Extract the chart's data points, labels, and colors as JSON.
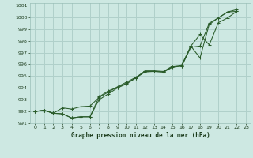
{
  "title": "Graphe pression niveau de la mer (hPa)",
  "background_color": "#cde8e2",
  "grid_color": "#b0d0ca",
  "line_color": "#2a5c2a",
  "xlim": [
    -0.5,
    23.5
  ],
  "ylim": [
    991.0,
    1001.2
  ],
  "xticks": [
    0,
    1,
    2,
    3,
    4,
    5,
    6,
    7,
    8,
    9,
    10,
    11,
    12,
    13,
    14,
    15,
    16,
    17,
    18,
    19,
    20,
    21,
    22,
    23
  ],
  "yticks": [
    991,
    992,
    993,
    994,
    995,
    996,
    997,
    998,
    999,
    1000,
    1001
  ],
  "series": [
    {
      "x": [
        0,
        1,
        2,
        3,
        4,
        5,
        6,
        7,
        8,
        9,
        10,
        11,
        12,
        13,
        14,
        15,
        16,
        17,
        18,
        19,
        20,
        21,
        22
      ],
      "y": [
        992.0,
        992.1,
        991.85,
        991.8,
        991.45,
        991.55,
        991.55,
        993.25,
        993.75,
        994.05,
        994.4,
        994.85,
        995.45,
        995.45,
        995.4,
        995.85,
        995.95,
        997.55,
        996.55,
        999.4,
        999.95,
        1000.45,
        1000.65
      ]
    },
    {
      "x": [
        0,
        1,
        2,
        3,
        4,
        5,
        6,
        7,
        8,
        9,
        10,
        11,
        12,
        13,
        14,
        15,
        16,
        17,
        18,
        19,
        20,
        21,
        22
      ],
      "y": [
        992.0,
        992.1,
        991.85,
        991.8,
        991.45,
        991.55,
        991.55,
        993.0,
        993.5,
        994.0,
        994.35,
        994.85,
        995.35,
        995.4,
        995.35,
        995.8,
        995.85,
        997.45,
        997.55,
        999.5,
        999.95,
        1000.45,
        1000.5
      ]
    },
    {
      "x": [
        0,
        1,
        2,
        3,
        4,
        5,
        6,
        7,
        8,
        9,
        10,
        11,
        12,
        13,
        14,
        15,
        16,
        17,
        18,
        19,
        20,
        21,
        22
      ],
      "y": [
        992.0,
        992.1,
        991.85,
        992.3,
        992.2,
        992.4,
        992.45,
        993.2,
        993.65,
        994.1,
        994.5,
        994.9,
        995.4,
        995.4,
        995.35,
        995.75,
        995.85,
        997.55,
        998.55,
        997.65,
        999.55,
        999.95,
        1000.5
      ]
    }
  ]
}
